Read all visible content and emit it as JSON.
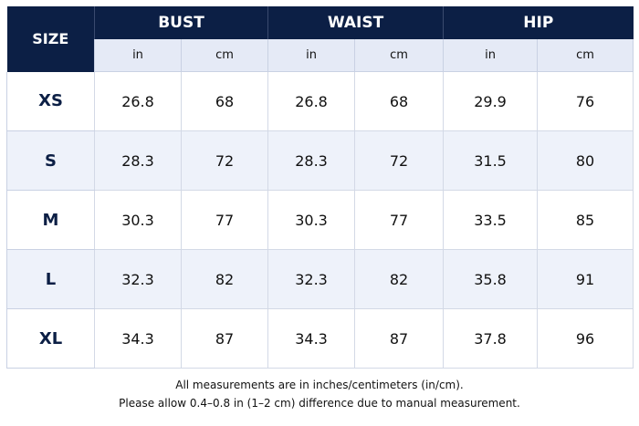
{
  "table": {
    "size_header": "SIZE",
    "groups": [
      "BUST",
      "WAIST",
      "HIP"
    ],
    "unit_in": "in",
    "unit_cm": "cm",
    "rows": [
      {
        "size": "XS",
        "bust_in": "26.8",
        "bust_cm": "68",
        "waist_in": "26.8",
        "waist_cm": "68",
        "hip_in": "29.9",
        "hip_cm": "76"
      },
      {
        "size": "S",
        "bust_in": "28.3",
        "bust_cm": "72",
        "waist_in": "28.3",
        "waist_cm": "72",
        "hip_in": "31.5",
        "hip_cm": "80"
      },
      {
        "size": "M",
        "bust_in": "30.3",
        "bust_cm": "77",
        "waist_in": "30.3",
        "waist_cm": "77",
        "hip_in": "33.5",
        "hip_cm": "85"
      },
      {
        "size": "L",
        "bust_in": "32.3",
        "bust_cm": "82",
        "waist_in": "32.3",
        "waist_cm": "82",
        "hip_in": "35.8",
        "hip_cm": "91"
      },
      {
        "size": "XL",
        "bust_in": "34.3",
        "bust_cm": "87",
        "waist_in": "34.3",
        "waist_cm": "87",
        "hip_in": "37.8",
        "hip_cm": "96"
      }
    ]
  },
  "notes": {
    "line1": "All measurements are in inches/centimeters (in/cm).",
    "line2": "Please allow 0.4–0.8 in (1–2 cm) difference due to manual measurement."
  },
  "colors": {
    "header_bg": "#0c1f45",
    "subheader_bg": "#e5eaf6",
    "alt_row_bg": "#eef2fa"
  }
}
